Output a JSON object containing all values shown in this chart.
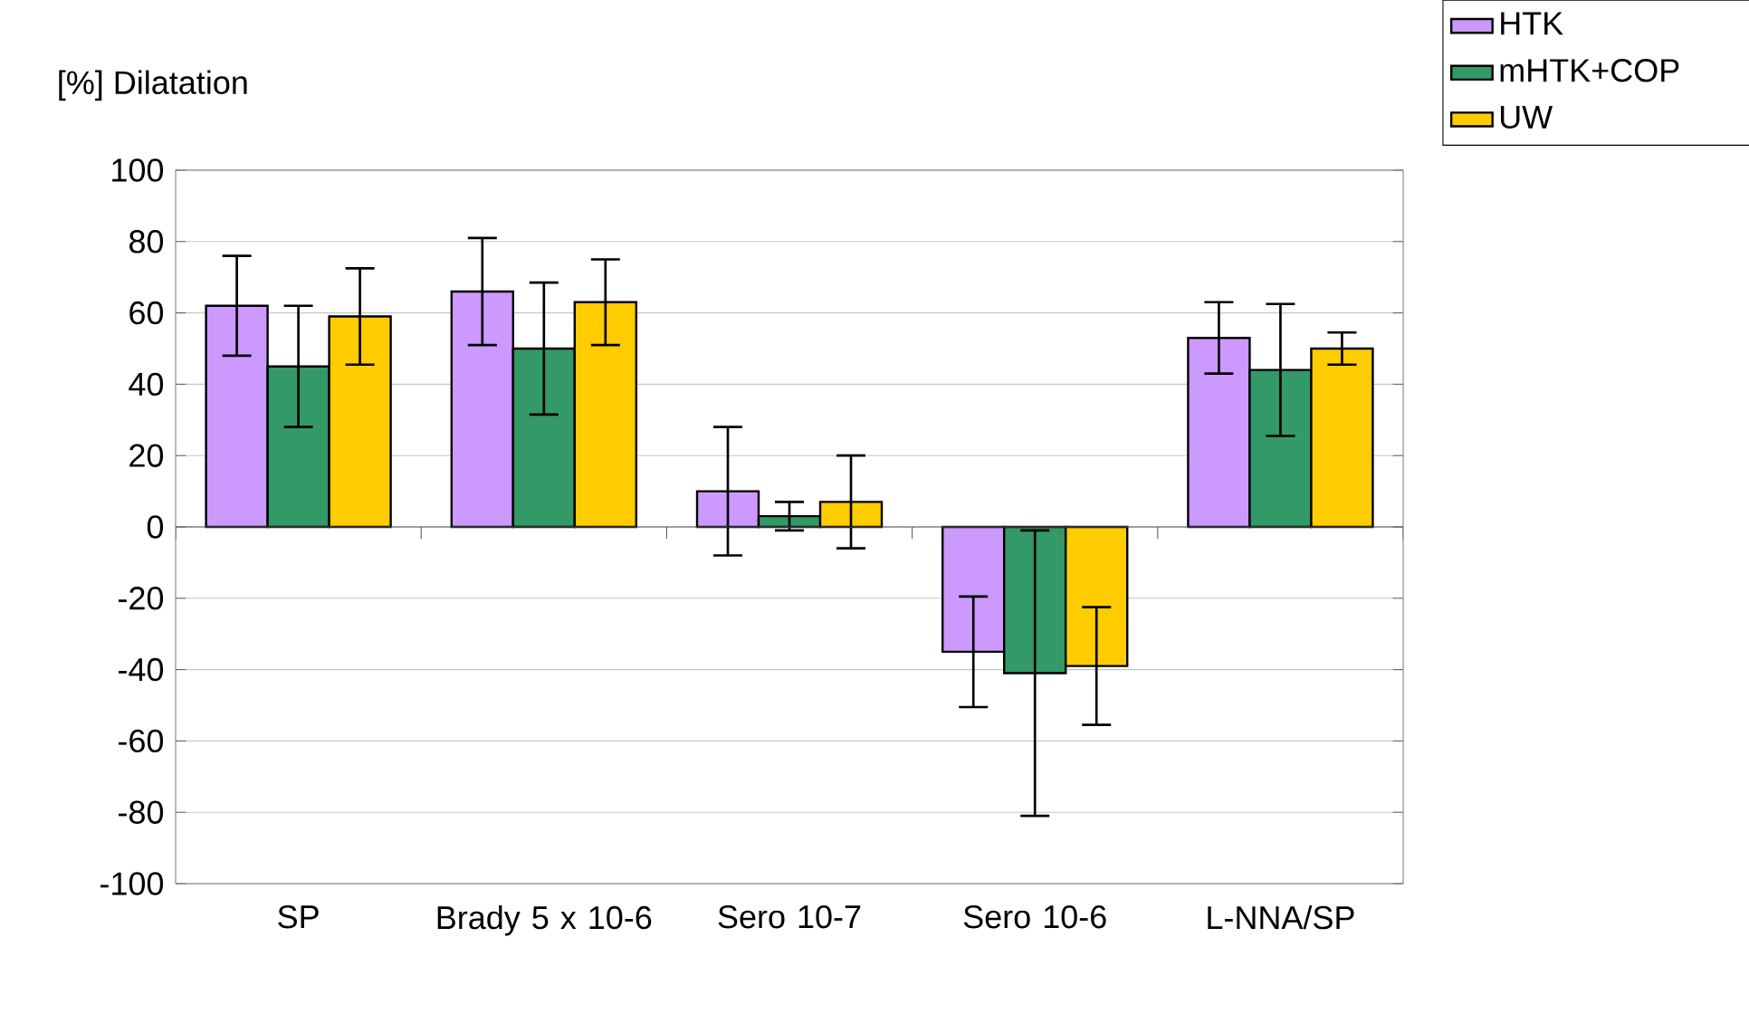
{
  "chart_data": {
    "type": "bar",
    "ylabel": "[%] Dilatation",
    "categories": [
      "SP",
      "Brady 5 x 10-6",
      "Sero 10-7",
      "Sero 10-6",
      "L-NNA/SP"
    ],
    "series": [
      {
        "name": "HTK",
        "color": "#cc99ff",
        "values": [
          62,
          66,
          10,
          -35,
          53
        ],
        "errors": [
          14,
          15,
          18,
          15.5,
          10
        ]
      },
      {
        "name": "mHTK+COP",
        "color": "#339966",
        "values": [
          45,
          50,
          3,
          -41,
          44
        ],
        "errors": [
          17,
          18.5,
          4,
          40,
          18.5
        ]
      },
      {
        "name": "UW",
        "color": "#ffcc00",
        "values": [
          59,
          63,
          7,
          -39,
          50
        ],
        "errors": [
          13.5,
          12,
          13,
          16.5,
          4.5
        ]
      }
    ],
    "ylim": [
      -100,
      100
    ],
    "yticks": [
      -100,
      -80,
      -60,
      -40,
      -20,
      0,
      20,
      40,
      60,
      80,
      100
    ],
    "grid": "y",
    "legend": "top right"
  }
}
